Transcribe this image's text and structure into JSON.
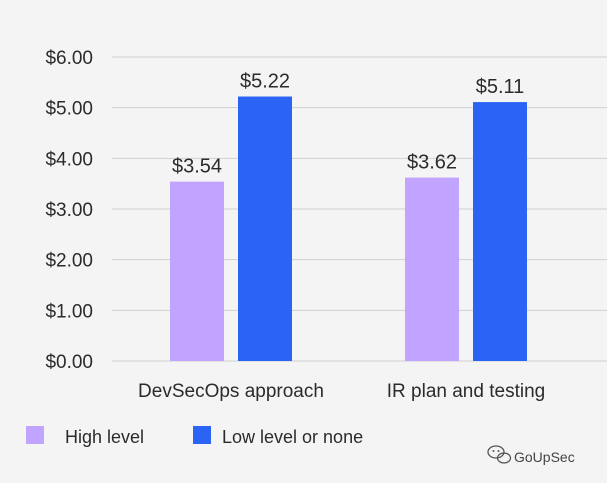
{
  "chart_data": {
    "type": "bar",
    "title": "",
    "xlabel": "",
    "ylabel": "",
    "categories": [
      "DevSecOps approach",
      "IR plan and testing"
    ],
    "series": [
      {
        "name": "High level",
        "color": "#c0a4ff",
        "values": [
          3.54,
          3.62
        ],
        "labels": [
          "$3.54",
          "$3.62"
        ]
      },
      {
        "name": "Low level or none",
        "color": "#2b63f5",
        "values": [
          5.22,
          5.11
        ],
        "labels": [
          "$5.22",
          "$5.11"
        ]
      }
    ],
    "ylim": [
      0,
      6
    ],
    "yticks": [
      0,
      1,
      2,
      3,
      4,
      5,
      6
    ],
    "ytick_labels": [
      "$0.00",
      "$1.00",
      "$2.00",
      "$3.00",
      "$4.00",
      "$5.00",
      "$6.00"
    ],
    "grid": true,
    "legend_position": "bottom-left"
  },
  "watermark": {
    "text": "GoUpSec",
    "icon": "wechat-icon"
  }
}
